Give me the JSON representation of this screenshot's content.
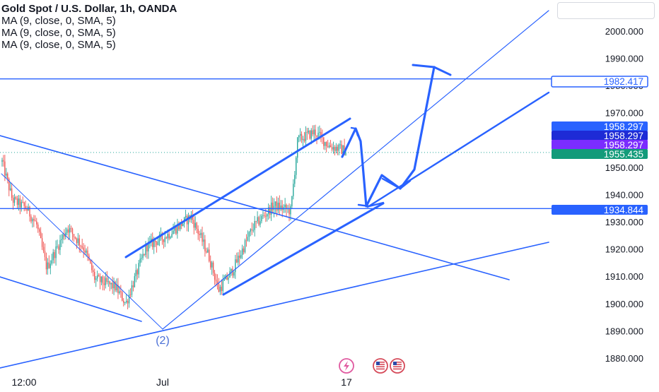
{
  "header": {
    "title": "Gold Spot / U.S. Dollar, 1h, OANDA",
    "indicators": [
      "MA (9, close, 0, SMA, 5)",
      "MA (9, close, 0, SMA, 5)",
      "MA (9, close, 0, SMA, 5)"
    ]
  },
  "colors": {
    "up": "#26a69a",
    "down": "#ef5350",
    "drawing": "#2962ff",
    "axis_text": "#131722",
    "price_tag_blue": "#2962ff",
    "price_tag_purple": "#7b2cff",
    "price_tag_navy": "#1e2bd6",
    "price_tag_green": "#139b7a"
  },
  "chart_data": {
    "type": "candlestick",
    "symbol": "XAUUSD",
    "timeframe": "1h",
    "ylim": [
      1877,
      2018
    ],
    "y_ticks": [
      "1880.000",
      "1890.000",
      "1900.000",
      "1910.000",
      "1920.000",
      "1930.000",
      "1940.000",
      "1950.000",
      "1960.000",
      "1970.000",
      "1980.000",
      "1990.000",
      "2000.000"
    ],
    "x_ticks": [
      "12:00",
      "Jul",
      "17"
    ],
    "price_tags": [
      {
        "label": "1982.417",
        "price": 1982.417,
        "style": "outline"
      },
      {
        "label": "1958.297",
        "price": 1958.297,
        "style": "blue"
      },
      {
        "label": "1958.297",
        "price": 1958.297,
        "style": "navy"
      },
      {
        "label": "1958.297",
        "price": 1958.297,
        "style": "purple"
      },
      {
        "label": "1955.435",
        "price": 1955.435,
        "style": "green"
      },
      {
        "label": "1934.844",
        "price": 1934.844,
        "style": "blue"
      }
    ],
    "horizontal_levels": [
      1982.417,
      1934.844
    ],
    "current_price": 1955.435,
    "wave_label": "(2)",
    "path": [
      [
        0,
        1952
      ],
      [
        0.03,
        1938
      ],
      [
        0.07,
        1935
      ],
      [
        0.1,
        1929
      ],
      [
        0.13,
        1913
      ],
      [
        0.19,
        1928
      ],
      [
        0.24,
        1920
      ],
      [
        0.27,
        1909
      ],
      [
        0.33,
        1906
      ],
      [
        0.36,
        1900
      ],
      [
        0.42,
        1921
      ],
      [
        0.48,
        1925
      ],
      [
        0.55,
        1932
      ],
      [
        0.6,
        1918
      ],
      [
        0.63,
        1905
      ],
      [
        0.67,
        1912
      ],
      [
        0.73,
        1928
      ],
      [
        0.79,
        1936
      ],
      [
        0.84,
        1934
      ],
      [
        0.86,
        1960
      ],
      [
        0.91,
        1963
      ],
      [
        0.95,
        1958
      ],
      [
        1.0,
        1956
      ]
    ]
  },
  "badges": [
    "lightning",
    "flag-us",
    "flag-us"
  ]
}
